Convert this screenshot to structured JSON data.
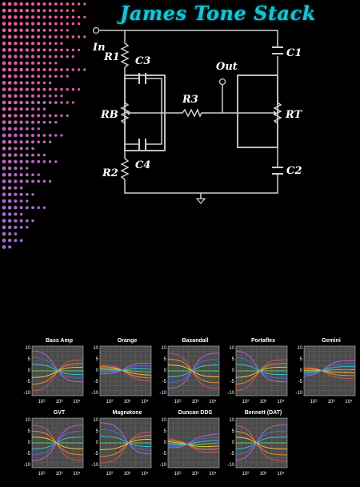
{
  "title": "James Tone Stack",
  "schematic": {
    "labels": {
      "in": "In",
      "out": "Out",
      "r1": "R1",
      "r2": "R2",
      "r3": "R3",
      "rb": "RB",
      "rt": "RT",
      "c1": "C1",
      "c2": "C2",
      "c3": "C3",
      "c4": "C4"
    }
  },
  "colors": {
    "title": "#19c3d6",
    "dots_top": "#e85a9c",
    "dots_bottom": "#9a6fd0",
    "plot_bg": "#4a4a4a",
    "curves": [
      "#e05050",
      "#ff8c2a",
      "#f5d040",
      "#5ad05a",
      "#30c8e0",
      "#4a6ae0",
      "#c060e0"
    ]
  },
  "plots": [
    {
      "title": "Bass Amp"
    },
    {
      "title": "Orange"
    },
    {
      "title": "Baxandall"
    },
    {
      "title": "Portaflex"
    },
    {
      "title": "Gemini"
    },
    {
      "title": "GVT"
    },
    {
      "title": "Magnatone"
    },
    {
      "title": "Duncan DDS"
    },
    {
      "title": "Bennett (DAT)"
    }
  ],
  "axes": {
    "y_ticks": [
      "10",
      "5",
      "0",
      "-5",
      "-10"
    ],
    "x_ticks": [
      "10²",
      "10³",
      "10⁴"
    ]
  }
}
